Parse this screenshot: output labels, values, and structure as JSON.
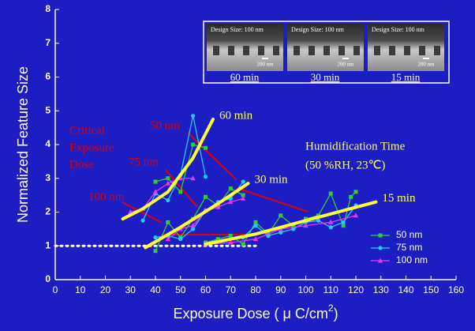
{
  "chart_data": {
    "type": "line",
    "ylabel": "Normalized Feature Size",
    "xlabel": {
      "text": "Exposure Dose ( μ C/cm",
      "superscript": "2",
      "suffix": ")"
    },
    "xlim": [
      0,
      160
    ],
    "xticks": [
      0,
      10,
      20,
      30,
      40,
      50,
      60,
      70,
      80,
      90,
      100,
      110,
      120,
      130,
      140,
      150,
      160
    ],
    "ylim": [
      0,
      8
    ],
    "yticks": [
      0,
      1,
      2,
      3,
      4,
      5,
      6,
      7,
      8
    ],
    "legend": "lower right",
    "series": [
      {
        "name": "50 nm",
        "color": "#33cc33",
        "marker": "square",
        "x": [
          40,
          45,
          50,
          55,
          60,
          null,
          40,
          45,
          50,
          55,
          60,
          65,
          70,
          75,
          null,
          60,
          65,
          70,
          75,
          80,
          85,
          90,
          95,
          100,
          105,
          110,
          115,
          118,
          120
        ],
        "values": [
          2.9,
          3.0,
          2.6,
          4.0,
          3.9,
          null,
          0.85,
          1.7,
          1.25,
          1.8,
          2.45,
          2.2,
          2.7,
          2.5,
          null,
          1.1,
          1.2,
          1.3,
          1.05,
          1.7,
          1.35,
          1.9,
          1.6,
          1.8,
          1.9,
          2.55,
          1.6,
          2.45,
          2.6
        ]
      },
      {
        "name": "75 nm",
        "color": "#22ccff",
        "marker": "circle",
        "x": [
          35,
          40,
          45,
          50,
          55,
          60,
          null,
          40,
          45,
          50,
          55,
          60,
          65,
          70,
          75,
          null,
          75,
          80,
          85,
          90,
          95,
          100,
          105,
          110,
          115,
          120
        ],
        "values": [
          1.75,
          2.55,
          2.35,
          3.1,
          4.85,
          3.05,
          null,
          1.25,
          1.3,
          1.2,
          1.5,
          2.05,
          2.3,
          2.4,
          2.9,
          null,
          1.25,
          1.6,
          1.3,
          1.4,
          1.5,
          1.7,
          1.75,
          1.55,
          1.7,
          2.2
        ]
      },
      {
        "name": "100 nm",
        "color": "#ee33ee",
        "marker": "triangle",
        "x": [
          30,
          35,
          40,
          45,
          50,
          55,
          null,
          45,
          50,
          55,
          60,
          65,
          70,
          75,
          null,
          60,
          70,
          80,
          90,
          100,
          110,
          120
        ],
        "values": [
          2.0,
          2.1,
          2.6,
          2.85,
          3.0,
          3.0,
          null,
          1.2,
          1.5,
          1.6,
          2.05,
          2.15,
          2.3,
          2.4,
          null,
          1.05,
          1.1,
          1.2,
          1.5,
          1.6,
          1.7,
          1.9
        ]
      }
    ],
    "reference_y": 1,
    "fits": [
      {
        "label": "60 min",
        "x": [
          27,
          35,
          45,
          55,
          63
        ],
        "values": [
          1.8,
          2.1,
          2.6,
          3.6,
          4.75
        ]
      },
      {
        "label": "30 min",
        "x": [
          36,
          50,
          65,
          77
        ],
        "values": [
          0.95,
          1.55,
          2.25,
          2.85
        ]
      },
      {
        "label": "15 min",
        "x": [
          60,
          80,
          100,
          128
        ],
        "values": [
          1.05,
          1.35,
          1.75,
          2.3
        ]
      }
    ],
    "annotations": {
      "critical": [
        "Critical",
        "Exposure",
        "Dose"
      ],
      "size_50": "50 nm",
      "size_75": "75 nm",
      "size_100": "100 nm",
      "humid": [
        "Humidification Time",
        "(50 %RH, 23℃)"
      ]
    },
    "insets": [
      {
        "design": "Design Size: 100 nm",
        "scale": "200 nm",
        "caption": "60 min"
      },
      {
        "design": "Design Size: 100 nm",
        "scale": "200 nm",
        "caption": "30 min"
      },
      {
        "design": "Design Size: 100 nm",
        "scale": "200 nm",
        "caption": "15 min"
      }
    ]
  }
}
